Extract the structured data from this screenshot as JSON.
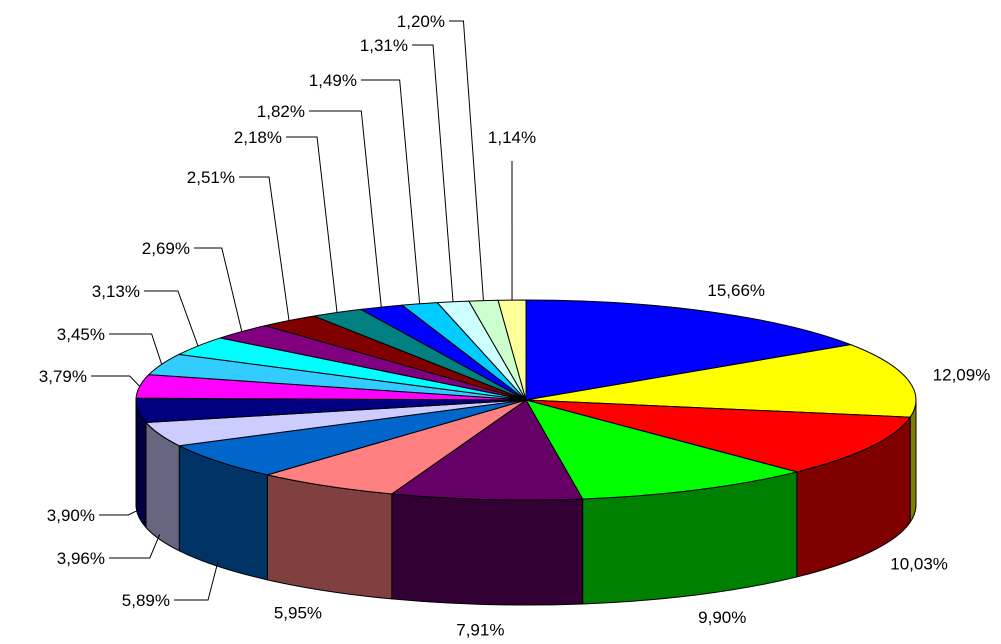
{
  "chart_data": {
    "type": "pie",
    "title": "",
    "legend": "none",
    "three_d": true,
    "slices": [
      {
        "label": "15,66%",
        "value": 15.66,
        "color": "#0000FF"
      },
      {
        "label": "12,09%",
        "value": 12.09,
        "color": "#FFFF00"
      },
      {
        "label": "10,03%",
        "value": 10.03,
        "color": "#FF0000"
      },
      {
        "label": "9,90%",
        "value": 9.9,
        "color": "#00FF00"
      },
      {
        "label": "7,91%",
        "value": 7.91,
        "color": "#660066"
      },
      {
        "label": "5,95%",
        "value": 5.95,
        "color": "#FF8080"
      },
      {
        "label": "5,89%",
        "value": 5.89,
        "color": "#0066CC"
      },
      {
        "label": "3,96%",
        "value": 3.96,
        "color": "#CCCCFF"
      },
      {
        "label": "3,90%",
        "value": 3.9,
        "color": "#000080"
      },
      {
        "label": "3,79%",
        "value": 3.79,
        "color": "#FF00FF"
      },
      {
        "label": "3,45%",
        "value": 3.45,
        "color": "#33CCFF"
      },
      {
        "label": "3,13%",
        "value": 3.13,
        "color": "#00FFFF"
      },
      {
        "label": "2,69%",
        "value": 2.69,
        "color": "#800080"
      },
      {
        "label": "2,51%",
        "value": 2.51,
        "color": "#800000"
      },
      {
        "label": "2,18%",
        "value": 2.18,
        "color": "#008080"
      },
      {
        "label": "1,82%",
        "value": 1.82,
        "color": "#0000FF"
      },
      {
        "label": "1,49%",
        "value": 1.49,
        "color": "#00CCFF"
      },
      {
        "label": "1,31%",
        "value": 1.31,
        "color": "#CCFFFF"
      },
      {
        "label": "1,20%",
        "value": 1.2,
        "color": "#CCFFCC"
      },
      {
        "label": "1,14%",
        "value": 1.14,
        "color": "#FFFF99"
      }
    ]
  }
}
